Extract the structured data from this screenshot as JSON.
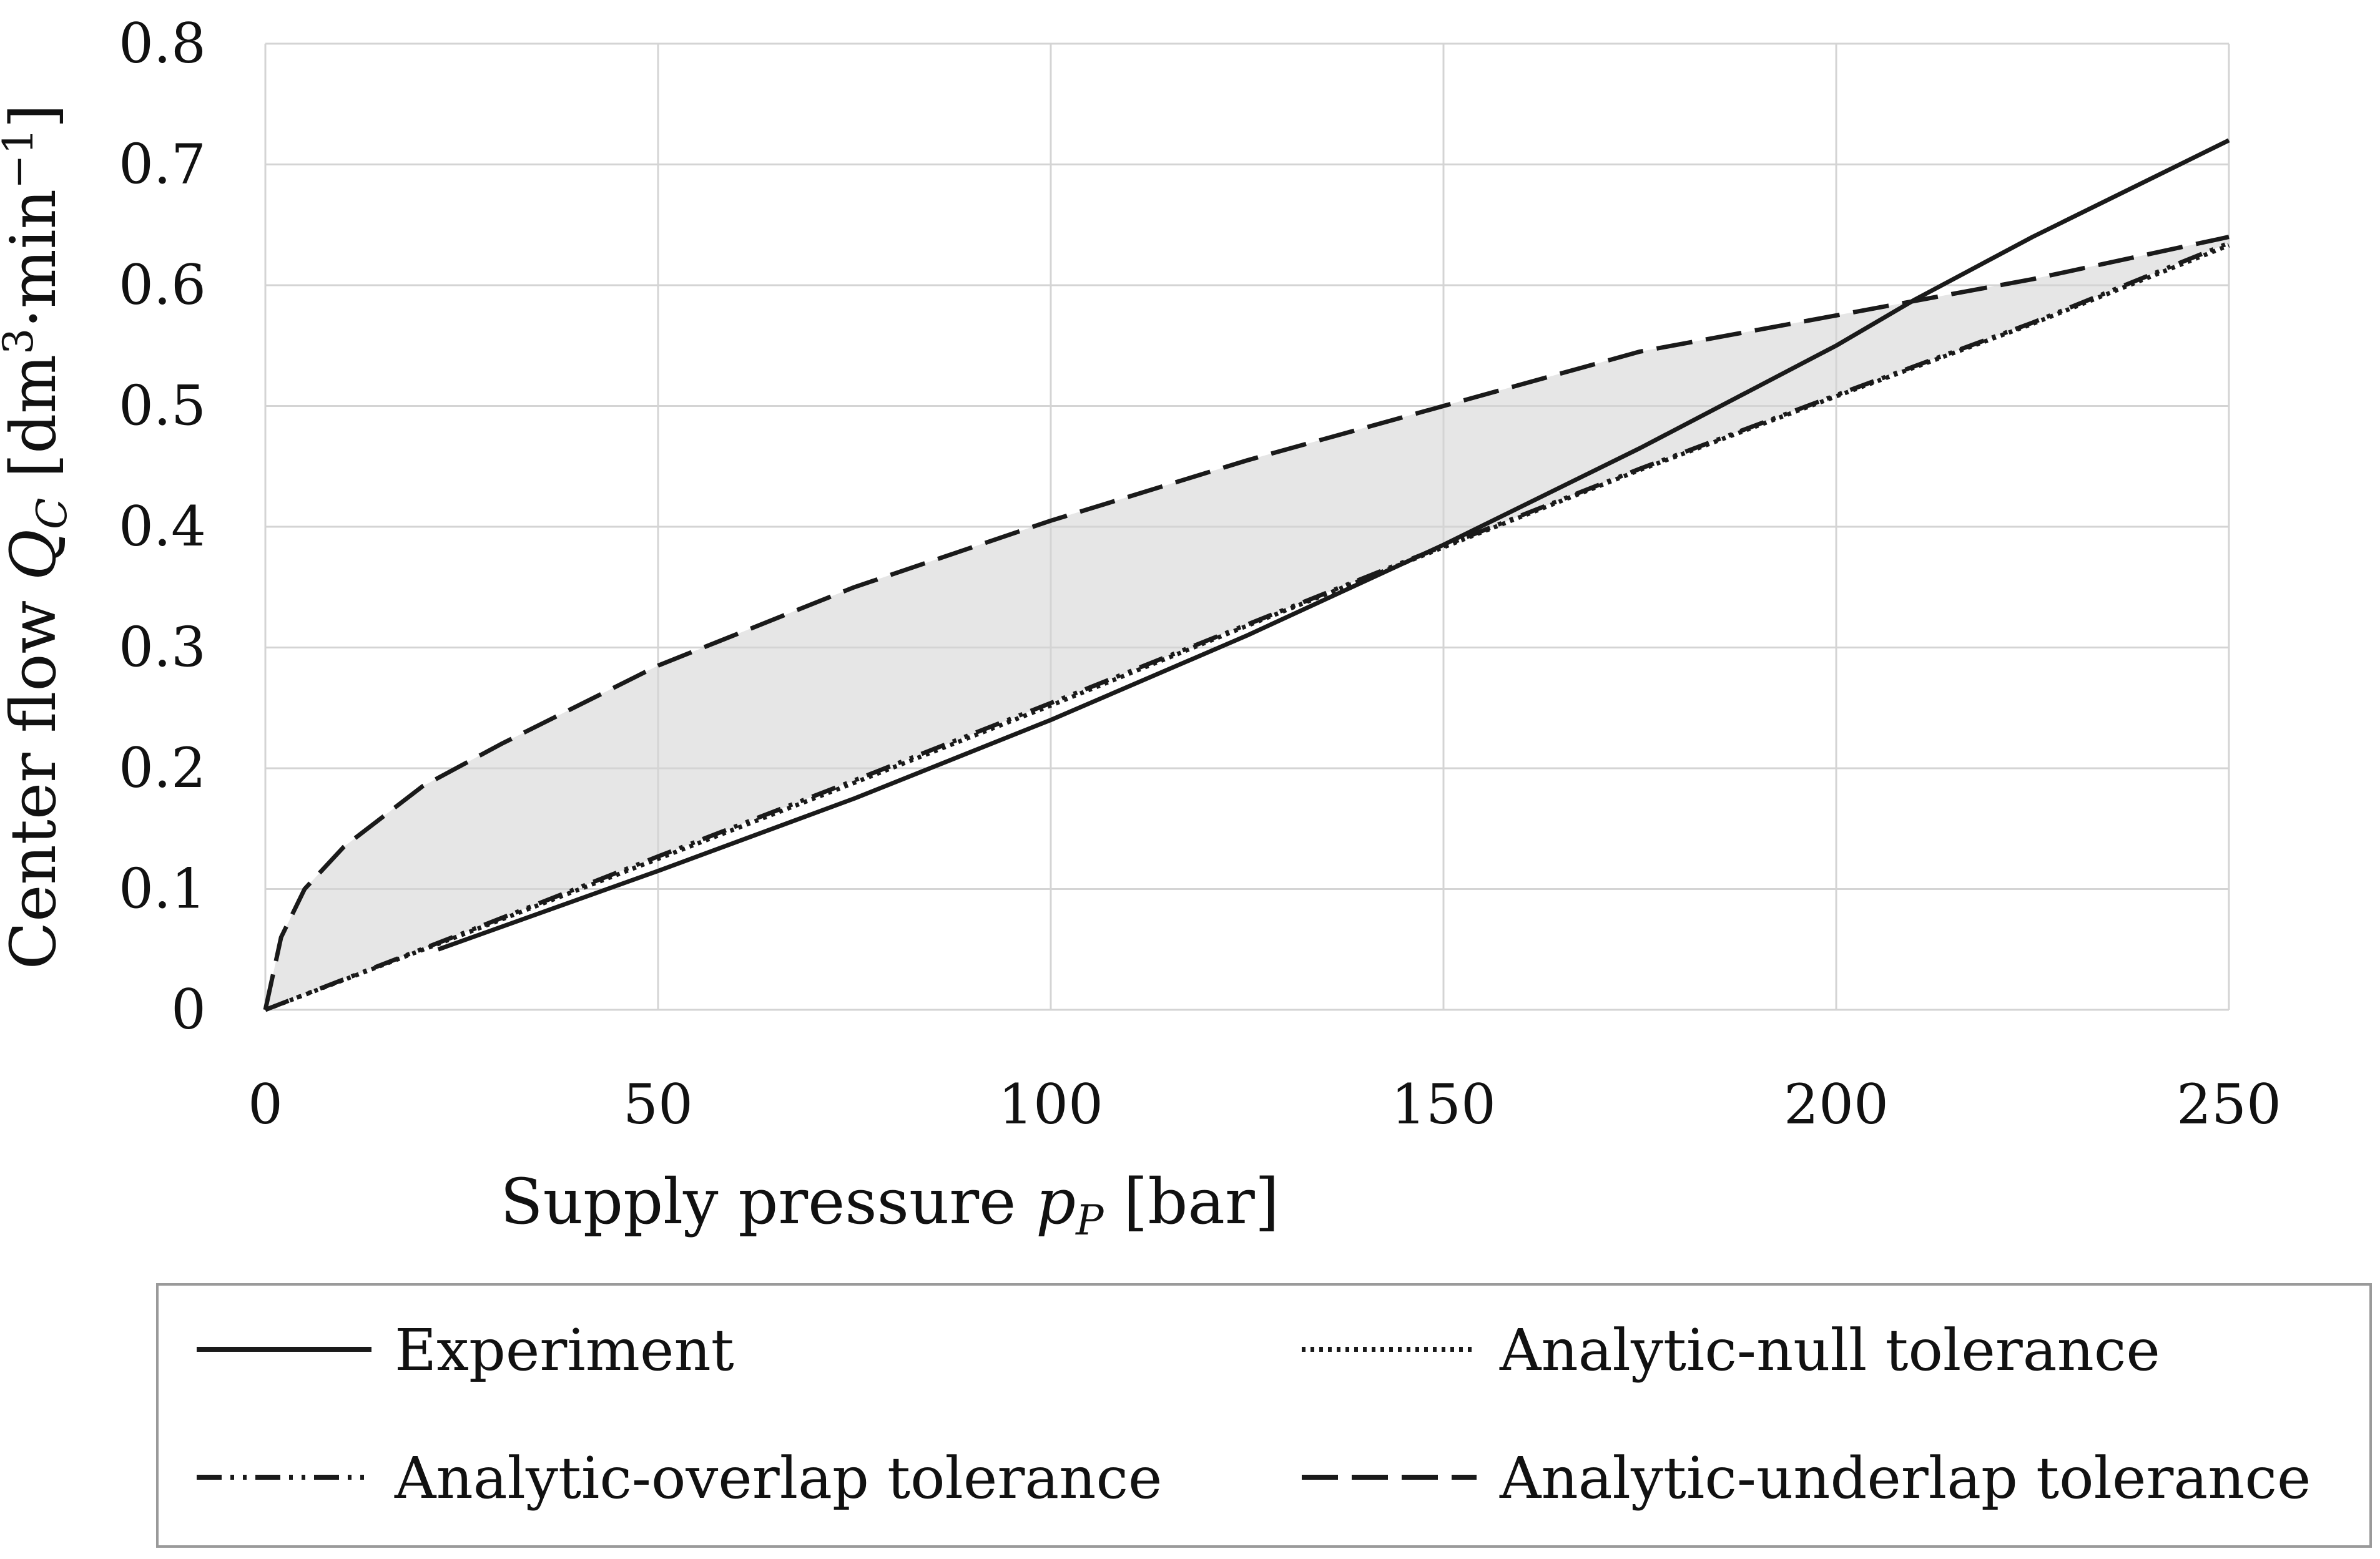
{
  "chart_data": {
    "type": "line",
    "xlabel": {
      "prefix": "Supply pressure ",
      "symbol": "p",
      "sub": "P",
      "unit": " [bar]"
    },
    "ylabel": {
      "prefix": "Center flow ",
      "symbol": "Q",
      "sub": "C",
      "unit_open": " [dm",
      "sup1": "3",
      "mid": "·min",
      "sup2": "−1",
      "unit_close": "]"
    },
    "xlim": [
      0,
      250
    ],
    "ylim": [
      0,
      0.8
    ],
    "xticks": [
      0,
      50,
      100,
      150,
      200,
      250
    ],
    "yticks": [
      0,
      0.1,
      0.2,
      0.3,
      0.4,
      0.5,
      0.6,
      0.7,
      0.8
    ],
    "xtick_labels": [
      "0",
      "50",
      "100",
      "150",
      "200",
      "250"
    ],
    "ytick_labels": [
      "0",
      "0.1",
      "0.2",
      "0.3",
      "0.4",
      "0.5",
      "0.6",
      "0.7",
      "0.8"
    ],
    "grid": true,
    "shaded_band": "between Analytic-underlap tolerance and Analytic-overlap tolerance",
    "series": [
      {
        "name": "Experiment",
        "style": "solid",
        "x": [
          22,
          50,
          75,
          100,
          125,
          150,
          175,
          200,
          210,
          225,
          250
        ],
        "y": [
          0.05,
          0.115,
          0.175,
          0.24,
          0.31,
          0.385,
          0.465,
          0.55,
          0.588,
          0.64,
          0.72
        ]
      },
      {
        "name": "Analytic-null tolerance",
        "style": "dotted",
        "x": [
          0,
          25,
          50,
          75,
          100,
          125,
          150,
          175,
          200,
          225,
          250
        ],
        "y": [
          0,
          0.062,
          0.125,
          0.188,
          0.252,
          0.318,
          0.383,
          0.447,
          0.508,
          0.568,
          0.633
        ]
      },
      {
        "name": "Analytic-overlap tolerance",
        "style": "dash-dot-dot",
        "x": [
          0,
          25,
          50,
          75,
          100,
          125,
          150,
          175,
          200,
          225,
          250
        ],
        "y": [
          0,
          0.063,
          0.127,
          0.19,
          0.254,
          0.319,
          0.384,
          0.448,
          0.509,
          0.569,
          0.635
        ]
      },
      {
        "name": "Analytic-underlap tolerance",
        "style": "dashed",
        "x": [
          0,
          2,
          5,
          10,
          20,
          30,
          50,
          75,
          100,
          125,
          150,
          175,
          200,
          225,
          250
        ],
        "y": [
          0,
          0.06,
          0.1,
          0.135,
          0.185,
          0.22,
          0.285,
          0.35,
          0.405,
          0.455,
          0.5,
          0.545,
          0.575,
          0.605,
          0.64
        ]
      }
    ]
  },
  "legend": {
    "items": [
      {
        "label": "Experiment",
        "style": "solid"
      },
      {
        "label": "Analytic-null tolerance",
        "style": "dotted"
      },
      {
        "label": "Analytic-overlap tolerance",
        "style": "dash-dot-dot"
      },
      {
        "label": "Analytic-underlap tolerance",
        "style": "dashed"
      }
    ]
  },
  "colors": {
    "line": "#1a1a1a",
    "grid": "#d4d4d4",
    "band": "#e6e6e6",
    "frame": "#9a9a9a"
  }
}
